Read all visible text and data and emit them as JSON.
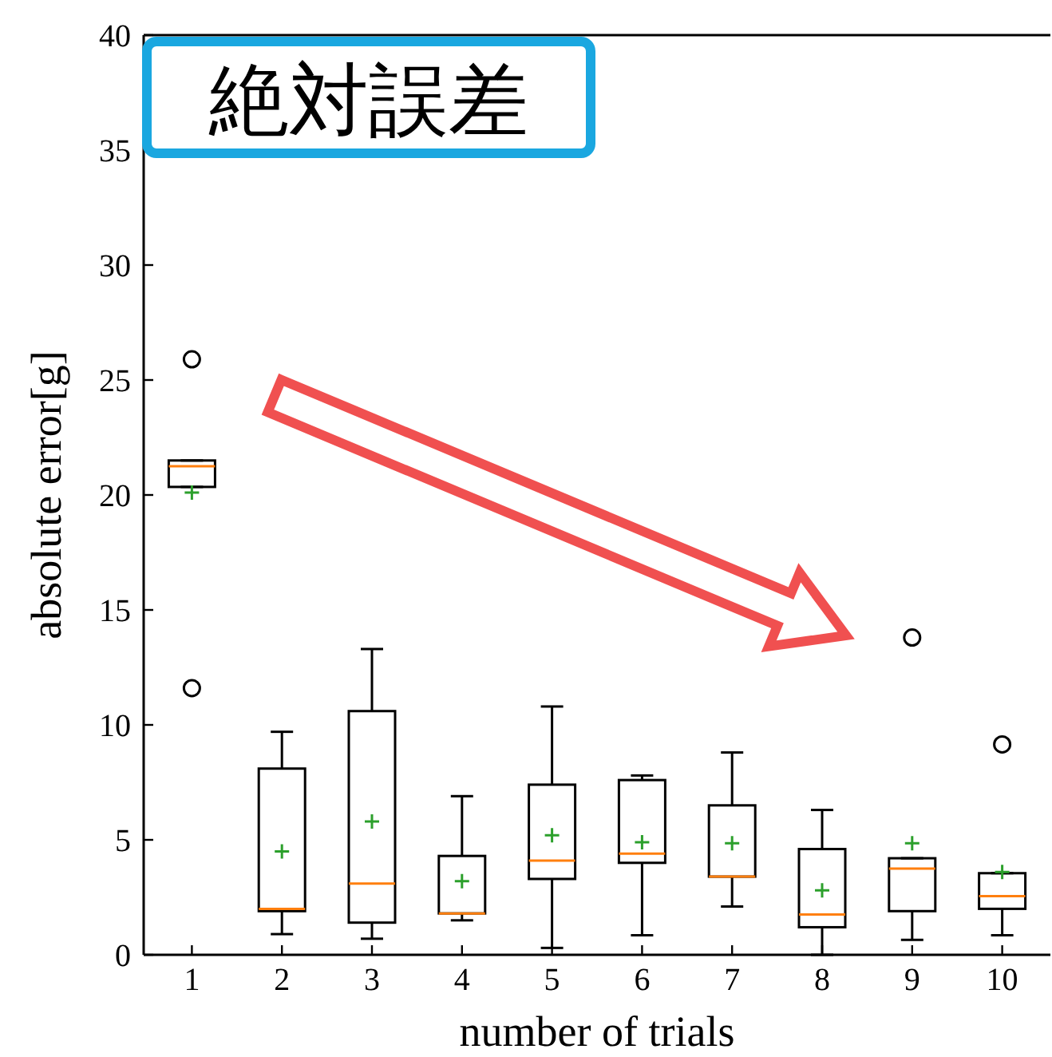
{
  "chart_data": {
    "type": "box",
    "title": "絶対誤差",
    "xlabel": "number of trials",
    "ylabel": "absolute error[g]",
    "categories": [
      "1",
      "2",
      "3",
      "4",
      "5",
      "6",
      "7",
      "8",
      "9",
      "10"
    ],
    "ylim": [
      0,
      40
    ],
    "yticks": [
      0,
      5,
      10,
      15,
      20,
      25,
      30,
      35,
      40
    ],
    "grid": false,
    "boxes": [
      {
        "low": 20.35,
        "q1": 20.35,
        "median": 21.25,
        "q3": 21.5,
        "high": 21.5,
        "mean": 20.1,
        "outliers": [
          25.9,
          11.6
        ]
      },
      {
        "low": 0.9,
        "q1": 1.9,
        "median": 2.0,
        "q3": 8.1,
        "high": 9.7,
        "mean": 4.5
      },
      {
        "low": 0.7,
        "q1": 1.4,
        "median": 3.1,
        "q3": 10.6,
        "high": 13.3,
        "mean": 5.8
      },
      {
        "low": 1.5,
        "q1": 1.8,
        "median": 1.8,
        "q3": 4.3,
        "high": 6.9,
        "mean": 3.2
      },
      {
        "low": 0.3,
        "q1": 3.3,
        "median": 4.1,
        "q3": 7.4,
        "high": 10.8,
        "mean": 5.2
      },
      {
        "low": 0.85,
        "q1": 4.0,
        "median": 4.4,
        "q3": 7.6,
        "high": 7.8,
        "mean": 4.9
      },
      {
        "low": 2.1,
        "q1": 3.4,
        "median": 3.4,
        "q3": 6.5,
        "high": 8.8,
        "mean": 4.85
      },
      {
        "low": 0,
        "q1": 1.2,
        "median": 1.75,
        "q3": 4.6,
        "high": 6.3,
        "mean": 2.8
      },
      {
        "low": 0.65,
        "q1": 1.9,
        "median": 3.75,
        "q3": 4.2,
        "high": 4.2,
        "mean": 4.85,
        "outliers": [
          13.8
        ]
      },
      {
        "low": 0.85,
        "q1": 2.0,
        "median": 2.55,
        "q3": 3.55,
        "high": 3.55,
        "mean": 3.6,
        "outliers": [
          9.15
        ]
      }
    ]
  }
}
